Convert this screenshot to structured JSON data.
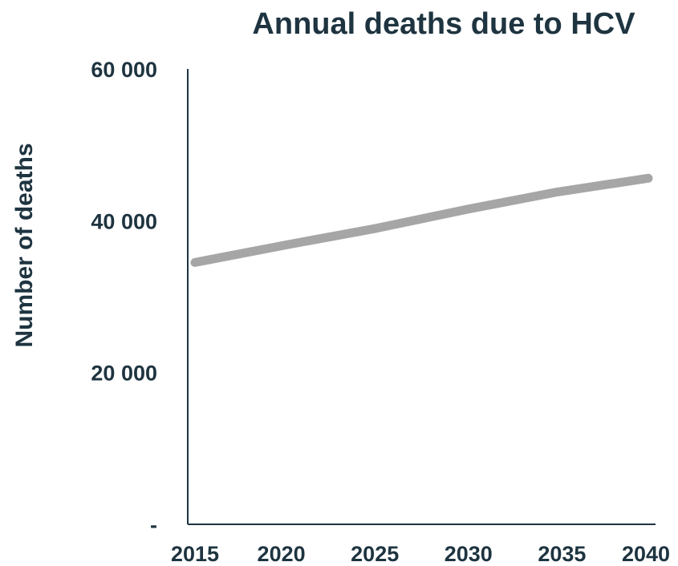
{
  "chart_data": {
    "type": "line",
    "title": "Annual deaths due to HCV",
    "xlabel": "",
    "ylabel": "Number of deaths",
    "x": [
      2015,
      2020,
      2025,
      2030,
      2035,
      2040
    ],
    "x_tick_labels": [
      "2015",
      "2020",
      "2025",
      "2030",
      "2035",
      "2040"
    ],
    "y_ticks": [
      0,
      20000,
      40000,
      60000
    ],
    "y_tick_labels": [
      "-",
      "20 000",
      "40 000",
      "60 000"
    ],
    "xlim": [
      2015,
      2040
    ],
    "ylim": [
      0,
      60000
    ],
    "grid": false,
    "series": [
      {
        "values": [
          34500,
          36800,
          39000,
          41500,
          43800,
          45600
        ],
        "color": "#a6a6a6"
      }
    ],
    "colors": {
      "text": "#1e3440",
      "axis": "#1e3440",
      "line": "#a6a6a6"
    }
  }
}
